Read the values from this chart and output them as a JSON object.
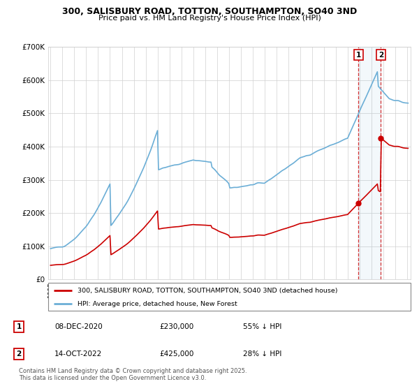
{
  "title": "300, SALISBURY ROAD, TOTTON, SOUTHAMPTON, SO40 3ND",
  "subtitle": "Price paid vs. HM Land Registry's House Price Index (HPI)",
  "legend_line1": "300, SALISBURY ROAD, TOTTON, SOUTHAMPTON, SO40 3ND (detached house)",
  "legend_line2": "HPI: Average price, detached house, New Forest",
  "footer": "Contains HM Land Registry data © Crown copyright and database right 2025.\nThis data is licensed under the Open Government Licence v3.0.",
  "annotation1_date": "08-DEC-2020",
  "annotation1_price": "£230,000",
  "annotation1_hpi": "55% ↓ HPI",
  "annotation2_date": "14-OCT-2022",
  "annotation2_price": "£425,000",
  "annotation2_hpi": "28% ↓ HPI",
  "hpi_color": "#6baed6",
  "price_color": "#cc0000",
  "marker1_x": 2020.917,
  "marker1_y": 230000,
  "marker2_x": 2022.792,
  "marker2_y": 425000,
  "ylim": [
    0,
    700000
  ],
  "xlim": [
    1994.8,
    2025.3
  ],
  "yticks": [
    0,
    100000,
    200000,
    300000,
    400000,
    500000,
    600000,
    700000
  ],
  "xticks": [
    1995,
    1996,
    1997,
    1998,
    1999,
    2000,
    2001,
    2002,
    2003,
    2004,
    2005,
    2006,
    2007,
    2008,
    2009,
    2010,
    2011,
    2012,
    2013,
    2014,
    2015,
    2016,
    2017,
    2018,
    2019,
    2020,
    2021,
    2022,
    2023,
    2024,
    2025
  ]
}
